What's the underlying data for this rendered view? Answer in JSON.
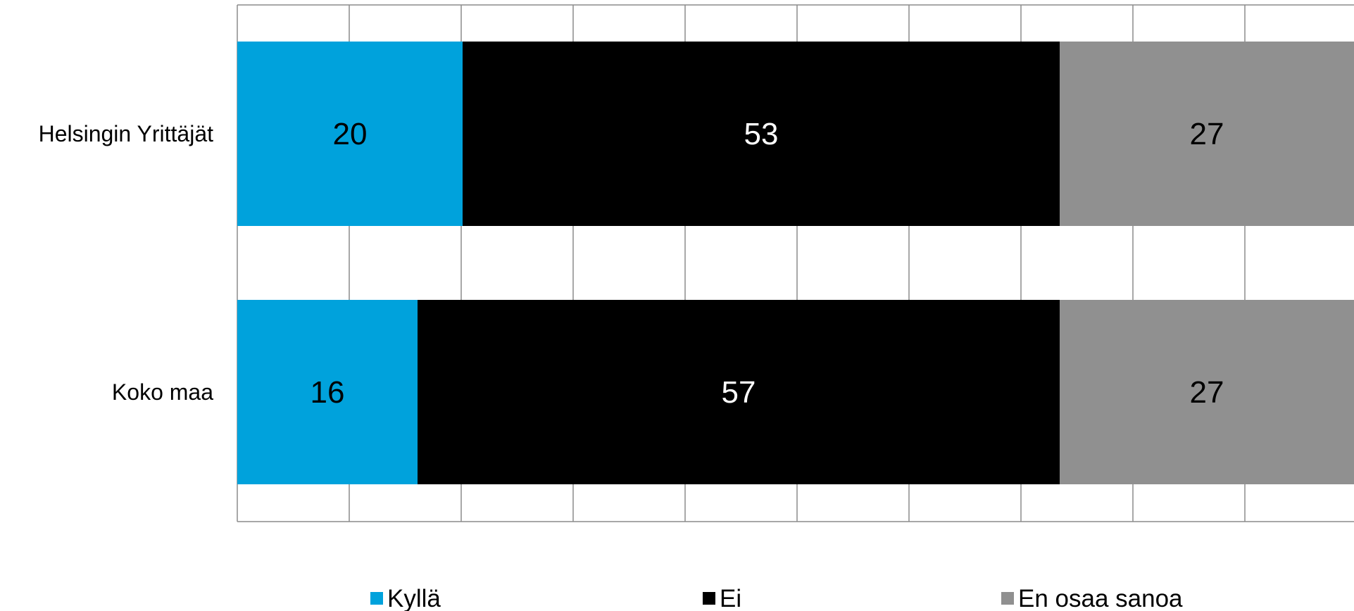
{
  "chart_data": {
    "type": "bar",
    "orientation": "horizontal",
    "stacked": true,
    "categories": [
      "Helsingin Yrittäjät",
      "Koko maa"
    ],
    "series": [
      {
        "name": "Kyllä",
        "values": [
          20,
          16
        ],
        "color": "#00A2DC",
        "label_color": "#000000"
      },
      {
        "name": "Ei",
        "values": [
          53,
          57
        ],
        "color": "#000000",
        "label_color": "#FFFFFF"
      },
      {
        "name": "En osaa sanoa",
        "values": [
          27,
          27
        ],
        "color": "#909090",
        "label_color": "#000000"
      }
    ],
    "xlim": [
      0,
      100
    ],
    "grid": true,
    "gridline_color": "#8C8C8C",
    "legend_position": "bottom"
  }
}
